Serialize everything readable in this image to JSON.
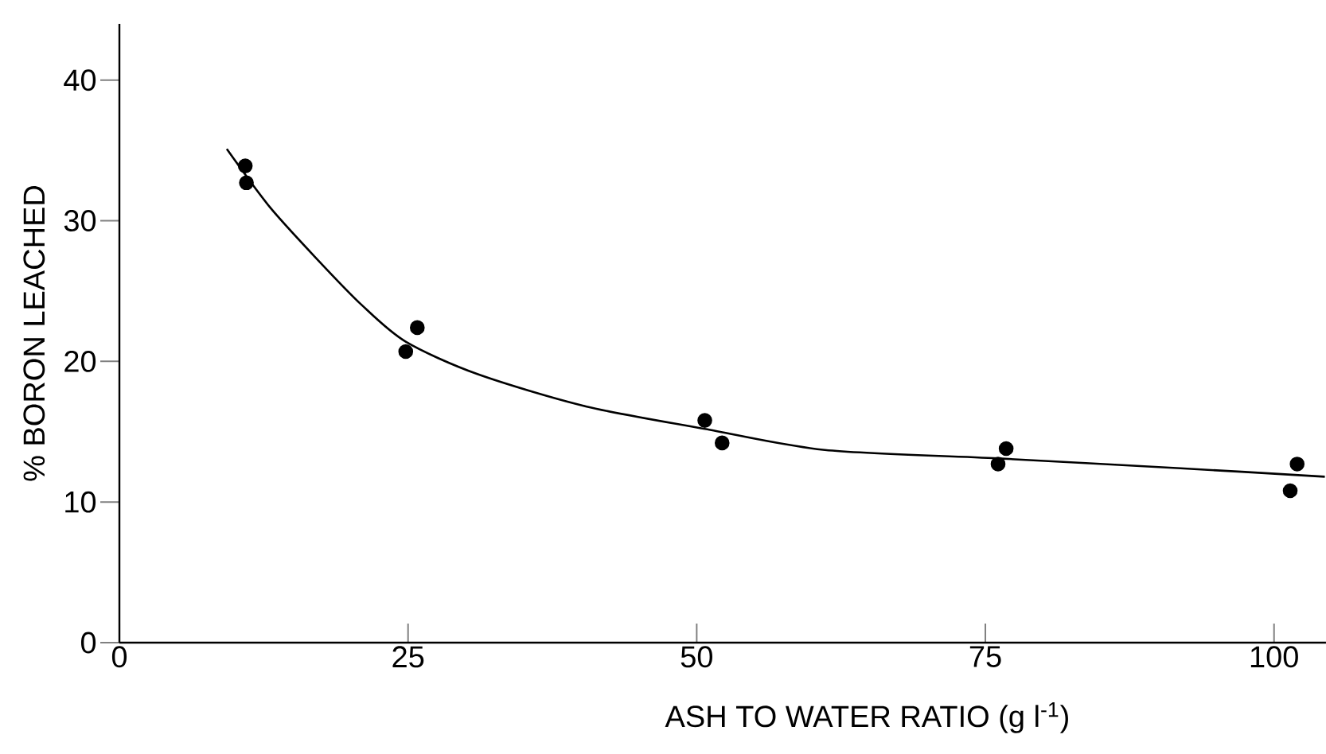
{
  "chart_data": {
    "type": "scatter",
    "xlabel": "ASH TO WATER RATIO (g l$^{-1}$)",
    "ylabel": "% BORON LEACHED",
    "xlim": [
      0,
      104.5
    ],
    "ylim": [
      0,
      44
    ],
    "xticks": [
      0,
      25,
      50,
      75,
      100
    ],
    "yticks": [
      0,
      10,
      20,
      30,
      40
    ],
    "grid": false,
    "series": [
      {
        "color": "#000000",
        "marker": "circle",
        "x": [
          10.9,
          11.0,
          24.8,
          25.8,
          50.7,
          52.2,
          76.1,
          76.8,
          101.4,
          102.0
        ],
        "values": [
          33.9,
          32.7,
          20.7,
          22.4,
          15.8,
          14.2,
          12.7,
          13.8,
          10.8,
          12.7
        ]
      },
      {
        "type": "line",
        "color": "#000000",
        "marker": "none",
        "line_style": "solid",
        "x": [
          9.3,
          13,
          17.2,
          21,
          24.8,
          31,
          40.4,
          50.7,
          61.1,
          76.1,
          91.9,
          104.4
        ],
        "values": [
          35.1,
          31.0,
          27.2,
          24.0,
          21.4,
          19.1,
          16.8,
          15.2,
          13.7,
          13.1,
          12.4,
          11.8
        ]
      }
    ]
  }
}
